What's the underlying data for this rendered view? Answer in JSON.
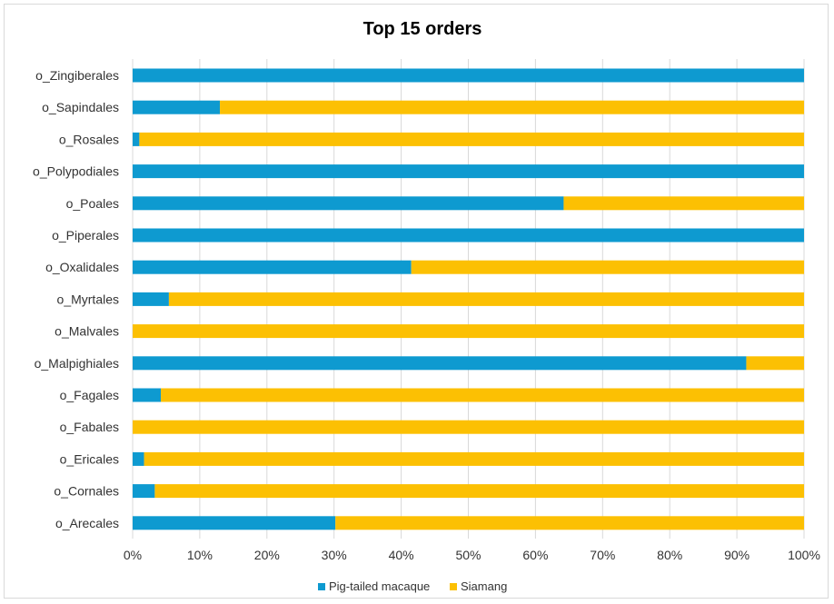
{
  "chart_data": {
    "type": "bar",
    "orientation": "horizontal",
    "stacked": "percent",
    "title": "Top 15 orders",
    "categories": [
      "o_Zingiberales",
      "o_Sapindales",
      "o_Rosales",
      "o_Polypodiales",
      "o_Poales",
      "o_Piperales",
      "o_Oxalidales",
      "o_Myrtales",
      "o_Malvales",
      "o_Malpighiales",
      "o_Fagales",
      "o_Fabales",
      "o_Ericales",
      "o_Cornales",
      "o_Arecales"
    ],
    "series": [
      {
        "name": "Pig-tailed macaque",
        "color": "#0e9ad0",
        "values": [
          100,
          13,
          1,
          100,
          64.2,
          100,
          41.5,
          5.4,
          0,
          91.4,
          4.2,
          0,
          1.7,
          3.3,
          30.2
        ]
      },
      {
        "name": "Siamang",
        "color": "#fcc003",
        "values": [
          0,
          87,
          99,
          0,
          35.8,
          0,
          58.5,
          94.6,
          100,
          8.6,
          95.8,
          100,
          98.3,
          96.7,
          69.8
        ]
      }
    ],
    "xlim": [
      0,
      100
    ],
    "xticks": [
      "0%",
      "10%",
      "20%",
      "30%",
      "40%",
      "50%",
      "60%",
      "70%",
      "80%",
      "90%",
      "100%"
    ],
    "grid": "vertical",
    "legend": "bottom"
  }
}
